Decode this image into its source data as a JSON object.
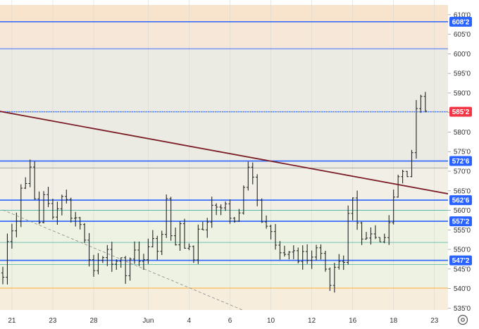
{
  "chart_data": {
    "type": "bar",
    "subtype": "ohlc",
    "ylim": [
      532,
      612.5
    ],
    "y_ticks": [
      610,
      605,
      600,
      595,
      590,
      585,
      580,
      575,
      570,
      565,
      560,
      555,
      550,
      545,
      540,
      535
    ],
    "y_tick_labels": [
      "610'0",
      "605'0",
      "600'0",
      "595'0",
      "590'0",
      "585'0",
      "580'0",
      "575'0",
      "570'0",
      "565'0",
      "560'0",
      "555'0",
      "550'0",
      "545'0",
      "540'0",
      "535'0"
    ],
    "x_ticks": [
      {
        "label": "21",
        "bar": 2
      },
      {
        "label": "23",
        "bar": 11
      },
      {
        "label": "28",
        "bar": 20
      },
      {
        "label": "Jun",
        "bar": 32
      },
      {
        "label": "4",
        "bar": 41
      },
      {
        "label": "6",
        "bar": 50
      },
      {
        "label": "10",
        "bar": 59
      },
      {
        "label": "12",
        "bar": 68
      },
      {
        "label": "16",
        "bar": 77
      },
      {
        "label": "18",
        "bar": 86
      },
      {
        "label": "23",
        "bar": 95
      }
    ],
    "bar_count": 100,
    "key_path": [
      [
        0,
        544
      ],
      [
        1,
        551
      ],
      [
        3,
        558
      ],
      [
        4,
        565
      ],
      [
        5,
        566
      ],
      [
        6,
        570
      ],
      [
        7,
        562
      ],
      [
        8,
        558
      ],
      [
        9,
        564
      ],
      [
        10,
        561
      ],
      [
        11,
        558
      ],
      [
        12,
        561
      ],
      [
        13,
        563
      ],
      [
        14,
        563
      ],
      [
        15,
        557
      ],
      [
        16,
        558
      ],
      [
        17,
        557
      ],
      [
        18,
        552
      ],
      [
        19,
        547
      ],
      [
        20,
        544
      ],
      [
        21,
        548
      ],
      [
        22,
        548
      ],
      [
        23,
        549
      ],
      [
        24,
        546
      ],
      [
        25,
        548
      ],
      [
        26,
        547
      ],
      [
        27,
        543
      ],
      [
        28,
        548
      ],
      [
        29,
        550
      ],
      [
        30,
        548
      ],
      [
        31,
        547
      ],
      [
        32,
        551
      ],
      [
        33,
        553
      ],
      [
        34,
        549
      ],
      [
        35,
        554
      ],
      [
        36,
        562
      ],
      [
        37,
        553
      ],
      [
        38,
        552
      ],
      [
        39,
        556
      ],
      [
        40,
        551
      ],
      [
        41,
        551
      ],
      [
        42,
        548
      ],
      [
        43,
        556
      ],
      [
        44,
        554
      ],
      [
        45,
        558
      ],
      [
        46,
        561
      ],
      [
        47,
        561
      ],
      [
        48,
        560
      ],
      [
        49,
        562
      ],
      [
        50,
        559
      ],
      [
        51,
        557
      ],
      [
        52,
        559
      ],
      [
        53,
        566
      ],
      [
        54,
        572
      ],
      [
        55,
        568
      ],
      [
        56,
        563
      ],
      [
        57,
        557
      ],
      [
        58,
        555
      ],
      [
        59,
        554
      ],
      [
        60,
        551
      ],
      [
        61,
        550
      ],
      [
        62,
        548
      ],
      [
        63,
        550
      ],
      [
        64,
        549
      ],
      [
        65,
        548
      ],
      [
        66,
        549
      ],
      [
        67,
        548
      ],
      [
        68,
        549
      ],
      [
        69,
        550
      ],
      [
        70,
        549
      ],
      [
        71,
        545
      ],
      [
        72,
        541
      ],
      [
        73,
        546
      ],
      [
        74,
        548
      ],
      [
        75,
        547
      ],
      [
        76,
        559
      ],
      [
        77,
        563
      ],
      [
        78,
        556
      ],
      [
        79,
        552
      ],
      [
        80,
        553
      ],
      [
        81,
        554
      ],
      [
        82,
        552
      ],
      [
        83,
        553
      ],
      [
        84,
        554
      ],
      [
        85,
        557
      ],
      [
        86,
        563
      ],
      [
        87,
        568
      ],
      [
        88,
        569
      ],
      [
        89,
        568
      ],
      [
        90,
        575
      ],
      [
        91,
        586
      ],
      [
        92,
        590
      ],
      [
        93,
        585
      ]
    ],
    "horizontal_lines": [
      {
        "value": 608.2,
        "color": "#2962ff",
        "width": 1.6,
        "label": "608'2"
      },
      {
        "value": 601.3,
        "color": "#2962ff",
        "width": 0.8
      },
      {
        "value": 585.2,
        "color": "#2962ff",
        "width": 1.5,
        "dotted": true,
        "label": "585'2",
        "label_color": "#f23645"
      },
      {
        "value": 572.6,
        "color": "#2962ff",
        "width": 1.6,
        "label": "572'6"
      },
      {
        "value": 570.8,
        "color": "#808080",
        "width": 0.7
      },
      {
        "value": 562.6,
        "color": "#2962ff",
        "width": 1.6,
        "label": "562'6"
      },
      {
        "value": 560.0,
        "color": "#26a69a",
        "width": 0.7
      },
      {
        "value": 557.2,
        "color": "#2962ff",
        "width": 1.6,
        "label": "557'2"
      },
      {
        "value": 551.8,
        "color": "#26a69a",
        "width": 0.7
      },
      {
        "value": 547.2,
        "color": "#2962ff",
        "width": 1.6,
        "label": "547'2"
      },
      {
        "value": 546.1,
        "color": "#26a69a",
        "width": 0.7
      },
      {
        "value": 540.1,
        "color": "#ff9800",
        "width": 0.8
      },
      {
        "value": 533.9,
        "color": "#f23645",
        "width": 0.8
      }
    ],
    "trend_lines": [
      {
        "from": {
          "bar": -3,
          "value": 585.8
        },
        "to": {
          "bar": 100,
          "value": 563.8
        },
        "color": "#7b1e28",
        "width": 1.8
      },
      {
        "from": {
          "bar": 0,
          "value": 560.1
        },
        "to": {
          "bar": 60,
          "value": 531.0
        },
        "color": "#888888",
        "width": 0.8,
        "dashed": true
      }
    ],
    "zones": [
      {
        "from": 612.5,
        "to": 608.2,
        "color": "#f8e3cd"
      },
      {
        "from": 608.2,
        "to": 601.3,
        "color": "#f7e7d8"
      },
      {
        "from": 601.3,
        "to": 570.8,
        "color": "#ebebe3"
      },
      {
        "from": 570.8,
        "to": 560.0,
        "color": "#f2f0e6"
      },
      {
        "from": 560.0,
        "to": 540.1,
        "color": "#eef2e2"
      },
      {
        "from": 540.1,
        "to": 533.9,
        "color": "#f6eddc"
      },
      {
        "from": 533.9,
        "to": 532.0,
        "color": "#f8e3cd"
      }
    ],
    "bar_color": "#222222",
    "grid": true,
    "legend": "none"
  },
  "toolbar": {
    "settings_icon": "gear-icon"
  }
}
